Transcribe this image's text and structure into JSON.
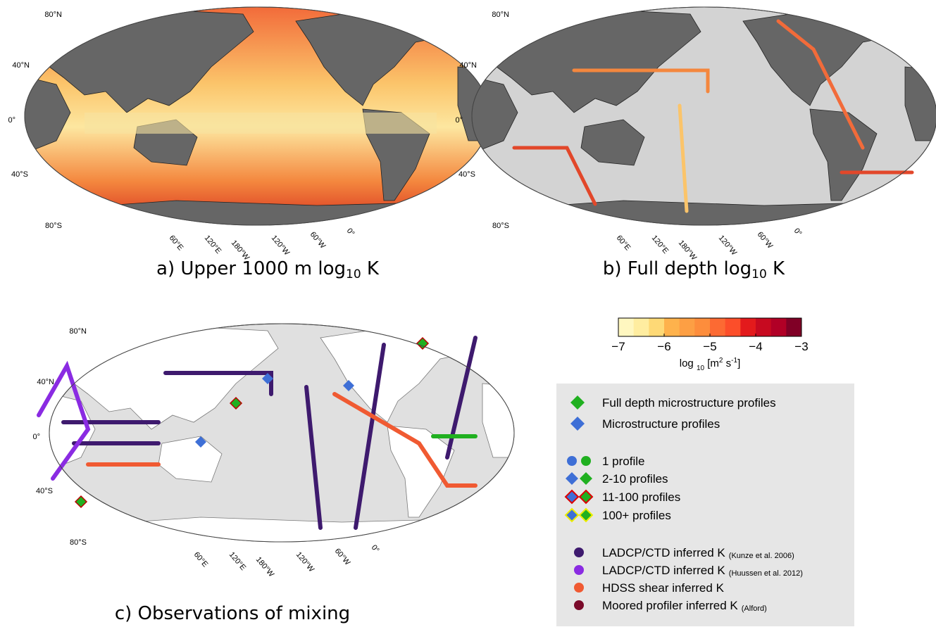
{
  "panels": [
    {
      "title": [
        "a) Upper 1000 m log",
        "10",
        " K"
      ]
    },
    {
      "title": [
        "b) Full depth log",
        "10",
        " K"
      ]
    },
    {
      "title": [
        "c) Observations of mixing"
      ]
    }
  ],
  "lat_labels": [
    "80°N",
    "40°N",
    "0°",
    "40°S",
    "80°S"
  ],
  "lon_labels": [
    "60°E",
    "120°E",
    "180°W",
    "120°W",
    "60°W",
    "0°"
  ],
  "colorbar": {
    "lim": [
      -7,
      -3
    ],
    "ticks": [
      {
        "value": -7,
        "label": "−7"
      },
      {
        "value": -6,
        "label": "−6"
      },
      {
        "value": -5,
        "label": "−5"
      },
      {
        "value": -4,
        "label": "−4"
      },
      {
        "value": -3,
        "label": "−3"
      }
    ],
    "colors": [
      "#fff7c0",
      "#ffeda0",
      "#fed976",
      "#feb24c",
      "#fd9f44",
      "#fd8d3c",
      "#fc6a33",
      "#fc4e2a",
      "#e31a1c",
      "#c70a20",
      "#b10026",
      "#800026"
    ],
    "label": [
      "log",
      "10",
      "[m",
      "2",
      " s",
      "-1",
      "]"
    ]
  },
  "legend": [
    {
      "label": "Full depth microstructure profiles"
    },
    {
      "label": "Microstructure profiles"
    },
    {
      "label": "1 profile"
    },
    {
      "label": "2-10 profiles"
    },
    {
      "label": "11-100 profiles"
    },
    {
      "label": "100+ profiles"
    },
    {
      "label": "LADCP/CTD inferred K",
      "note": "(Kunze et al. 2006)"
    },
    {
      "label": "LADCP/CTD inferred K",
      "note": "(Huussen et al. 2012)"
    },
    {
      "label": "HDSS shear inferred K"
    },
    {
      "label": "Moored profiler inferred K",
      "note": "(Alford)"
    }
  ]
}
